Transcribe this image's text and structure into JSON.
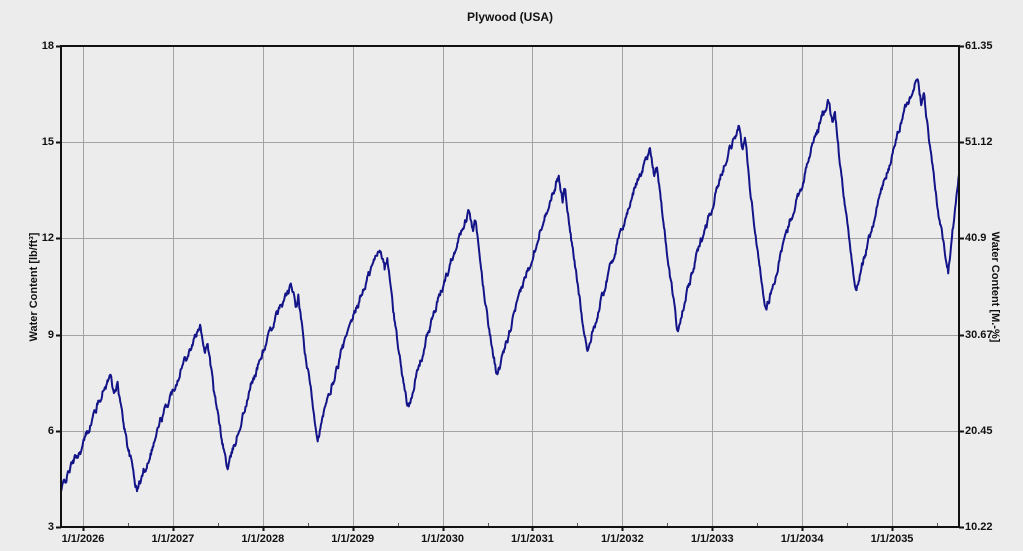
{
  "chart_data": {
    "type": "line",
    "title": "Plywood (USA)",
    "y_left_label": "Water Content [lb/ft³]",
    "y_right_label": "Water Content [M.-%]",
    "x_tick_labels": [
      "1/1/2026",
      "1/1/2027",
      "1/1/2028",
      "1/1/2029",
      "1/1/2030",
      "1/1/2031",
      "1/1/2032",
      "1/1/2033",
      "1/1/2034",
      "1/1/2035"
    ],
    "x_tick_years": [
      2026,
      2027,
      2028,
      2029,
      2030,
      2031,
      2032,
      2033,
      2034,
      2035
    ],
    "y_left_ticks": [
      "18",
      "15",
      "12",
      "9",
      "6",
      "3"
    ],
    "y_left_tick_values": [
      18,
      15,
      12,
      9,
      6,
      3
    ],
    "y_right_ticks": [
      "61.35",
      "51.12",
      "40.9",
      "30.67",
      "20.45",
      "10.22"
    ],
    "x_range": [
      2025.755,
      2035.745
    ],
    "y_left_range": [
      3,
      18
    ],
    "y_right_range": [
      10.22,
      61.35
    ],
    "grid": true,
    "legend": "none",
    "line_color": "#141489",
    "grid_color": "#a3a3a3",
    "frame_color": "#111111",
    "background": "#ececec",
    "series": [
      {
        "name": "Water Content",
        "keypoints": [
          [
            2025.755,
            4.1
          ],
          [
            2025.85,
            4.8
          ],
          [
            2026.0,
            5.55
          ],
          [
            2026.1,
            6.35
          ],
          [
            2026.2,
            7.1
          ],
          [
            2026.28,
            7.6
          ],
          [
            2026.31,
            7.7
          ],
          [
            2026.355,
            7.15
          ],
          [
            2026.385,
            7.45
          ],
          [
            2026.44,
            6.4
          ],
          [
            2026.52,
            5.25
          ],
          [
            2026.6,
            4.15
          ],
          [
            2026.7,
            4.9
          ],
          [
            2026.85,
            6.2
          ],
          [
            2027.0,
            7.25
          ],
          [
            2027.12,
            8.15
          ],
          [
            2027.24,
            8.9
          ],
          [
            2027.31,
            9.2
          ],
          [
            2027.355,
            8.55
          ],
          [
            2027.385,
            8.85
          ],
          [
            2027.46,
            7.1
          ],
          [
            2027.54,
            5.8
          ],
          [
            2027.61,
            4.8
          ],
          [
            2027.72,
            5.9
          ],
          [
            2027.87,
            7.4
          ],
          [
            2028.0,
            8.45
          ],
          [
            2028.13,
            9.45
          ],
          [
            2028.26,
            10.2
          ],
          [
            2028.32,
            10.5
          ],
          [
            2028.365,
            9.85
          ],
          [
            2028.395,
            10.15
          ],
          [
            2028.47,
            8.4
          ],
          [
            2028.55,
            6.95
          ],
          [
            2028.61,
            5.8
          ],
          [
            2028.72,
            6.9
          ],
          [
            2028.87,
            8.4
          ],
          [
            2029.0,
            9.45
          ],
          [
            2029.13,
            10.5
          ],
          [
            2029.26,
            11.4
          ],
          [
            2029.31,
            11.75
          ],
          [
            2029.355,
            11.05
          ],
          [
            2029.385,
            11.35
          ],
          [
            2029.46,
            9.55
          ],
          [
            2029.54,
            8.0
          ],
          [
            2029.61,
            6.7
          ],
          [
            2029.72,
            7.8
          ],
          [
            2029.87,
            9.35
          ],
          [
            2030.0,
            10.45
          ],
          [
            2030.12,
            11.55
          ],
          [
            2030.24,
            12.5
          ],
          [
            2030.29,
            12.85
          ],
          [
            2030.335,
            12.2
          ],
          [
            2030.365,
            12.5
          ],
          [
            2030.44,
            10.7
          ],
          [
            2030.53,
            9.0
          ],
          [
            2030.61,
            7.7
          ],
          [
            2030.72,
            8.8
          ],
          [
            2030.87,
            10.35
          ],
          [
            2031.0,
            11.45
          ],
          [
            2031.12,
            12.6
          ],
          [
            2031.24,
            13.55
          ],
          [
            2031.29,
            13.9
          ],
          [
            2031.335,
            13.25
          ],
          [
            2031.365,
            13.55
          ],
          [
            2031.44,
            11.75
          ],
          [
            2031.53,
            10.0
          ],
          [
            2031.61,
            8.5
          ],
          [
            2031.72,
            9.6
          ],
          [
            2031.87,
            11.2
          ],
          [
            2032.0,
            12.3
          ],
          [
            2032.13,
            13.5
          ],
          [
            2032.26,
            14.45
          ],
          [
            2032.31,
            14.75
          ],
          [
            2032.355,
            14.05
          ],
          [
            2032.385,
            14.35
          ],
          [
            2032.46,
            12.4
          ],
          [
            2032.54,
            10.65
          ],
          [
            2032.61,
            9.15
          ],
          [
            2032.72,
            10.3
          ],
          [
            2032.87,
            11.9
          ],
          [
            2033.0,
            13.0
          ],
          [
            2033.12,
            14.2
          ],
          [
            2033.24,
            15.15
          ],
          [
            2033.29,
            15.5
          ],
          [
            2033.335,
            14.8
          ],
          [
            2033.365,
            15.1
          ],
          [
            2033.44,
            13.1
          ],
          [
            2033.52,
            11.3
          ],
          [
            2033.6,
            9.75
          ],
          [
            2033.72,
            11.0
          ],
          [
            2033.87,
            12.6
          ],
          [
            2034.0,
            13.7
          ],
          [
            2034.12,
            14.95
          ],
          [
            2034.24,
            15.95
          ],
          [
            2034.29,
            16.3
          ],
          [
            2034.335,
            15.6
          ],
          [
            2034.365,
            15.9
          ],
          [
            2034.44,
            13.8
          ],
          [
            2034.52,
            12.0
          ],
          [
            2034.6,
            10.4
          ],
          [
            2034.72,
            11.7
          ],
          [
            2034.87,
            13.4
          ],
          [
            2035.0,
            14.55
          ],
          [
            2035.12,
            15.85
          ],
          [
            2035.24,
            16.75
          ],
          [
            2035.28,
            17.0
          ],
          [
            2035.325,
            16.2
          ],
          [
            2035.355,
            16.55
          ],
          [
            2035.43,
            14.6
          ],
          [
            2035.52,
            12.7
          ],
          [
            2035.625,
            11.05
          ],
          [
            2035.69,
            12.6
          ],
          [
            2035.745,
            14.0
          ]
        ]
      }
    ]
  }
}
